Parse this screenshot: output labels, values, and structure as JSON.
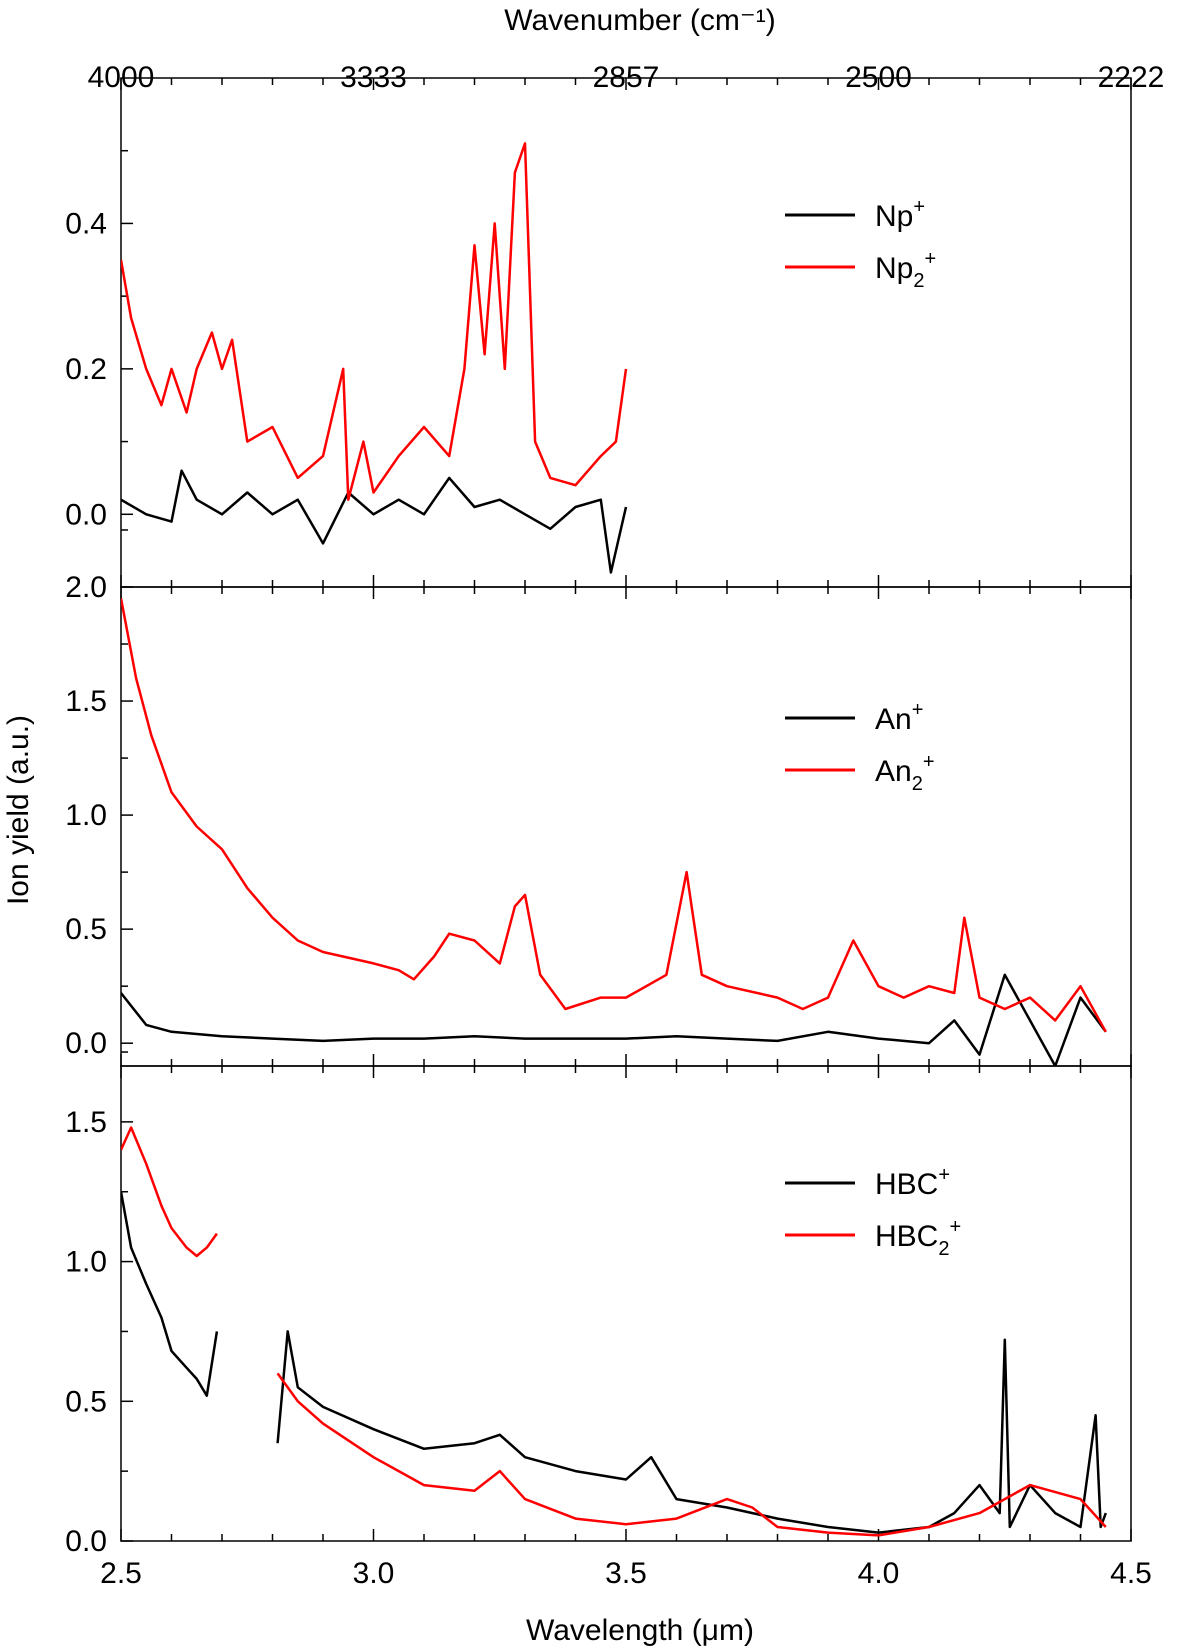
{
  "figure": {
    "top_axis_label": "Wavenumber (cm⁻¹)",
    "bottom_axis_label": "Wavelength (μm)",
    "y_axis_label": "Ion yield (a.u.)",
    "top_tick_labels": [
      "4000",
      "3333",
      "2857",
      "2500",
      "2222"
    ],
    "bottom_tick_labels": [
      "2.5",
      "3.0",
      "3.5",
      "4.0",
      "4.5"
    ]
  },
  "colors": {
    "monomer": "#000000",
    "dimer": "#ff0000"
  },
  "chart_data": [
    {
      "type": "line",
      "panel": "top",
      "x_range": [
        2.5,
        4.5
      ],
      "ylim": [
        -0.1,
        0.6
      ],
      "yticks": [
        0.0,
        0.2,
        0.4
      ],
      "ytick_labels": [
        "0.0",
        "0.2",
        "0.4"
      ],
      "legend_position": "top-right",
      "series": [
        {
          "name": "Np+",
          "label_base": "Np",
          "label_sub": "",
          "label_sup": "+",
          "color": "#000000",
          "x": [
            2.5,
            2.55,
            2.6,
            2.62,
            2.65,
            2.7,
            2.75,
            2.8,
            2.85,
            2.9,
            2.95,
            3.0,
            3.05,
            3.1,
            3.15,
            3.2,
            3.25,
            3.3,
            3.35,
            3.4,
            3.45,
            3.47,
            3.5
          ],
          "y": [
            0.02,
            0.0,
            -0.01,
            0.06,
            0.02,
            0.0,
            0.03,
            0.0,
            0.02,
            -0.04,
            0.03,
            0.0,
            0.02,
            0.0,
            0.05,
            0.01,
            0.02,
            0.0,
            -0.02,
            0.01,
            0.02,
            -0.08,
            0.01
          ]
        },
        {
          "name": "Np2+",
          "label_base": "Np",
          "label_sub": "2",
          "label_sup": "+",
          "color": "#ff0000",
          "x": [
            2.5,
            2.52,
            2.55,
            2.58,
            2.6,
            2.63,
            2.65,
            2.68,
            2.7,
            2.72,
            2.75,
            2.8,
            2.85,
            2.9,
            2.94,
            2.95,
            2.98,
            3.0,
            3.05,
            3.1,
            3.15,
            3.18,
            3.2,
            3.22,
            3.24,
            3.26,
            3.28,
            3.3,
            3.32,
            3.35,
            3.4,
            3.45,
            3.48,
            3.5
          ],
          "y": [
            0.35,
            0.27,
            0.2,
            0.15,
            0.2,
            0.14,
            0.2,
            0.25,
            0.2,
            0.24,
            0.1,
            0.12,
            0.05,
            0.08,
            0.2,
            0.02,
            0.1,
            0.03,
            0.08,
            0.12,
            0.08,
            0.2,
            0.37,
            0.22,
            0.4,
            0.2,
            0.47,
            0.51,
            0.1,
            0.05,
            0.04,
            0.08,
            0.1,
            0.2
          ]
        }
      ]
    },
    {
      "type": "line",
      "panel": "middle",
      "x_range": [
        2.5,
        4.5
      ],
      "ylim": [
        -0.1,
        2.0
      ],
      "yticks": [
        0.0,
        0.5,
        1.0,
        1.5,
        2.0
      ],
      "ytick_labels": [
        "0.0",
        "0.5",
        "1.0",
        "1.5",
        "2.0"
      ],
      "legend_position": "right",
      "series": [
        {
          "name": "An+",
          "label_base": "An",
          "label_sub": "",
          "label_sup": "+",
          "color": "#000000",
          "x": [
            2.5,
            2.55,
            2.6,
            2.7,
            2.8,
            2.9,
            3.0,
            3.1,
            3.2,
            3.3,
            3.4,
            3.5,
            3.6,
            3.7,
            3.8,
            3.9,
            4.0,
            4.1,
            4.15,
            4.2,
            4.25,
            4.3,
            4.35,
            4.4,
            4.45
          ],
          "y": [
            0.22,
            0.08,
            0.05,
            0.03,
            0.02,
            0.01,
            0.02,
            0.02,
            0.03,
            0.02,
            0.02,
            0.02,
            0.03,
            0.02,
            0.01,
            0.05,
            0.02,
            0.0,
            0.1,
            -0.05,
            0.3,
            0.1,
            -0.1,
            0.2,
            0.05
          ]
        },
        {
          "name": "An2+",
          "label_base": "An",
          "label_sub": "2",
          "label_sup": "+",
          "color": "#ff0000",
          "x": [
            2.5,
            2.53,
            2.56,
            2.6,
            2.65,
            2.7,
            2.75,
            2.8,
            2.85,
            2.9,
            3.0,
            3.05,
            3.08,
            3.12,
            3.15,
            3.2,
            3.25,
            3.28,
            3.3,
            3.33,
            3.38,
            3.45,
            3.5,
            3.58,
            3.62,
            3.63,
            3.65,
            3.7,
            3.8,
            3.85,
            3.9,
            3.95,
            4.0,
            4.05,
            4.1,
            4.15,
            4.17,
            4.2,
            4.25,
            4.3,
            4.35,
            4.4,
            4.45
          ],
          "y": [
            1.95,
            1.6,
            1.35,
            1.1,
            0.95,
            0.85,
            0.68,
            0.55,
            0.45,
            0.4,
            0.35,
            0.32,
            0.28,
            0.38,
            0.48,
            0.45,
            0.35,
            0.6,
            0.65,
            0.3,
            0.15,
            0.2,
            0.2,
            0.3,
            0.75,
            0.6,
            0.3,
            0.25,
            0.2,
            0.15,
            0.2,
            0.45,
            0.25,
            0.2,
            0.25,
            0.22,
            0.55,
            0.2,
            0.15,
            0.2,
            0.1,
            0.25,
            0.05
          ]
        }
      ]
    },
    {
      "type": "line",
      "panel": "bottom",
      "x_range": [
        2.5,
        4.5
      ],
      "ylim": [
        0.0,
        1.7
      ],
      "yticks": [
        0.0,
        0.5,
        1.0,
        1.5
      ],
      "ytick_labels": [
        "0.0",
        "0.5",
        "1.0",
        "1.5"
      ],
      "legend_position": "right",
      "series": [
        {
          "name": "HBC+",
          "label_base": "HBC",
          "label_sub": "",
          "label_sup": "+",
          "color": "#000000",
          "segments": [
            {
              "x": [
                2.5,
                2.52,
                2.55,
                2.58,
                2.6,
                2.63,
                2.65,
                2.67,
                2.69
              ],
              "y": [
                1.25,
                1.05,
                0.92,
                0.8,
                0.68,
                0.62,
                0.58,
                0.52,
                0.75
              ]
            },
            {
              "x": [
                2.81,
                2.83,
                2.85,
                2.9,
                3.0,
                3.1,
                3.2,
                3.25,
                3.3,
                3.4,
                3.5,
                3.55,
                3.6,
                3.7,
                3.8,
                3.9,
                4.0,
                4.1,
                4.15,
                4.2,
                4.24,
                4.25,
                4.26,
                4.3,
                4.35,
                4.4,
                4.43,
                4.44,
                4.45
              ],
              "y": [
                0.35,
                0.75,
                0.55,
                0.48,
                0.4,
                0.33,
                0.35,
                0.38,
                0.3,
                0.25,
                0.22,
                0.3,
                0.15,
                0.12,
                0.08,
                0.05,
                0.03,
                0.05,
                0.1,
                0.2,
                0.1,
                0.72,
                0.05,
                0.2,
                0.1,
                0.05,
                0.45,
                0.05,
                0.1
              ]
            }
          ]
        },
        {
          "name": "HBC2+",
          "label_base": "HBC",
          "label_sub": "2",
          "label_sup": "+",
          "color": "#ff0000",
          "segments": [
            {
              "x": [
                2.5,
                2.52,
                2.55,
                2.58,
                2.6,
                2.63,
                2.65,
                2.67,
                2.69
              ],
              "y": [
                1.4,
                1.48,
                1.35,
                1.2,
                1.12,
                1.05,
                1.02,
                1.05,
                1.1
              ]
            },
            {
              "x": [
                2.81,
                2.85,
                2.9,
                3.0,
                3.1,
                3.2,
                3.25,
                3.3,
                3.4,
                3.5,
                3.6,
                3.7,
                3.75,
                3.8,
                3.9,
                4.0,
                4.1,
                4.2,
                4.3,
                4.4,
                4.45
              ],
              "y": [
                0.6,
                0.5,
                0.42,
                0.3,
                0.2,
                0.18,
                0.25,
                0.15,
                0.08,
                0.06,
                0.08,
                0.15,
                0.12,
                0.05,
                0.03,
                0.02,
                0.05,
                0.1,
                0.2,
                0.15,
                0.05
              ]
            }
          ]
        }
      ]
    }
  ]
}
